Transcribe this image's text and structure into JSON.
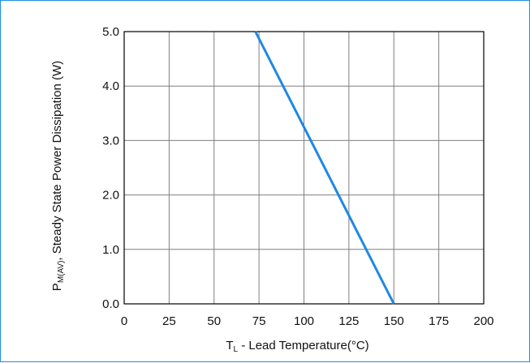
{
  "chart_data": {
    "type": "line",
    "title": "",
    "xlabel_main": "T",
    "xlabel_sub": "L",
    "xlabel_rest": " - Lead Temperature(°C)",
    "ylabel_main": "P",
    "ylabel_sub": "M(AV)",
    "ylabel_rest": ", Steady State Power Dissipation (W)",
    "xlim": [
      0,
      200
    ],
    "ylim": [
      0,
      5
    ],
    "x_ticks": [
      0,
      25,
      50,
      75,
      100,
      125,
      150,
      175,
      200
    ],
    "x_tick_labels": [
      "0",
      "25",
      "50",
      "75",
      "100",
      "125",
      "150",
      "175",
      "200"
    ],
    "y_ticks": [
      0,
      1,
      2,
      3,
      4,
      5
    ],
    "y_tick_labels": [
      "0.0",
      "1.0",
      "2.0",
      "3.0",
      "4.0",
      "5.0"
    ],
    "grid": true,
    "series": [
      {
        "x": [
          73,
          150
        ],
        "y": [
          5.0,
          0.0
        ],
        "color": "#1e88e5"
      }
    ]
  },
  "colors": {
    "frame": "#1e90e6",
    "grid": "#7f7f7f",
    "axis": "#000000",
    "line": "#1e88e5"
  }
}
